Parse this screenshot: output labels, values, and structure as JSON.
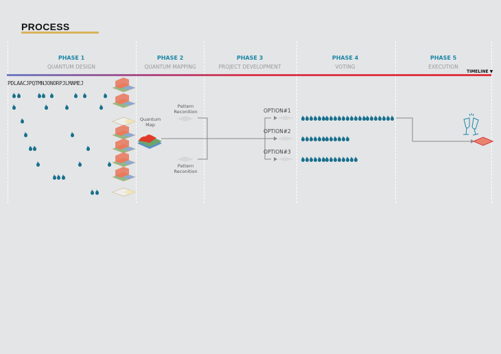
{
  "title": "PROCESS",
  "timeline_label": "TIMELINE ▼",
  "phases": [
    {
      "number": "PHASE 1",
      "name": "QUANTUM DESIGN"
    },
    {
      "number": "PHASE 2",
      "name": "QUANTUM MAPPING"
    },
    {
      "number": "PHASE 3",
      "name": "PROJECT DEVELOPMENT"
    },
    {
      "number": "PHASE 4",
      "name": "VOTING"
    },
    {
      "number": "PHASE 5",
      "name": "EXECUTION"
    }
  ],
  "letters": "PDLAACJPQTMNJONORPJLMAMEJ",
  "quantum_map": "Quantum Map",
  "pattern_top": "Pattern Reconition",
  "pattern_bottom": "Pattern Reconition",
  "options": [
    {
      "label": "OPTION#1",
      "votes": 23
    },
    {
      "label": "OPTION#2",
      "votes": 12
    },
    {
      "label": "OPTION#3",
      "votes": 14
    }
  ],
  "colors": {
    "accent": "#1b86a6",
    "drop": "#17708c",
    "timeline_end": "#de3440",
    "underline": "#d9b25a"
  }
}
